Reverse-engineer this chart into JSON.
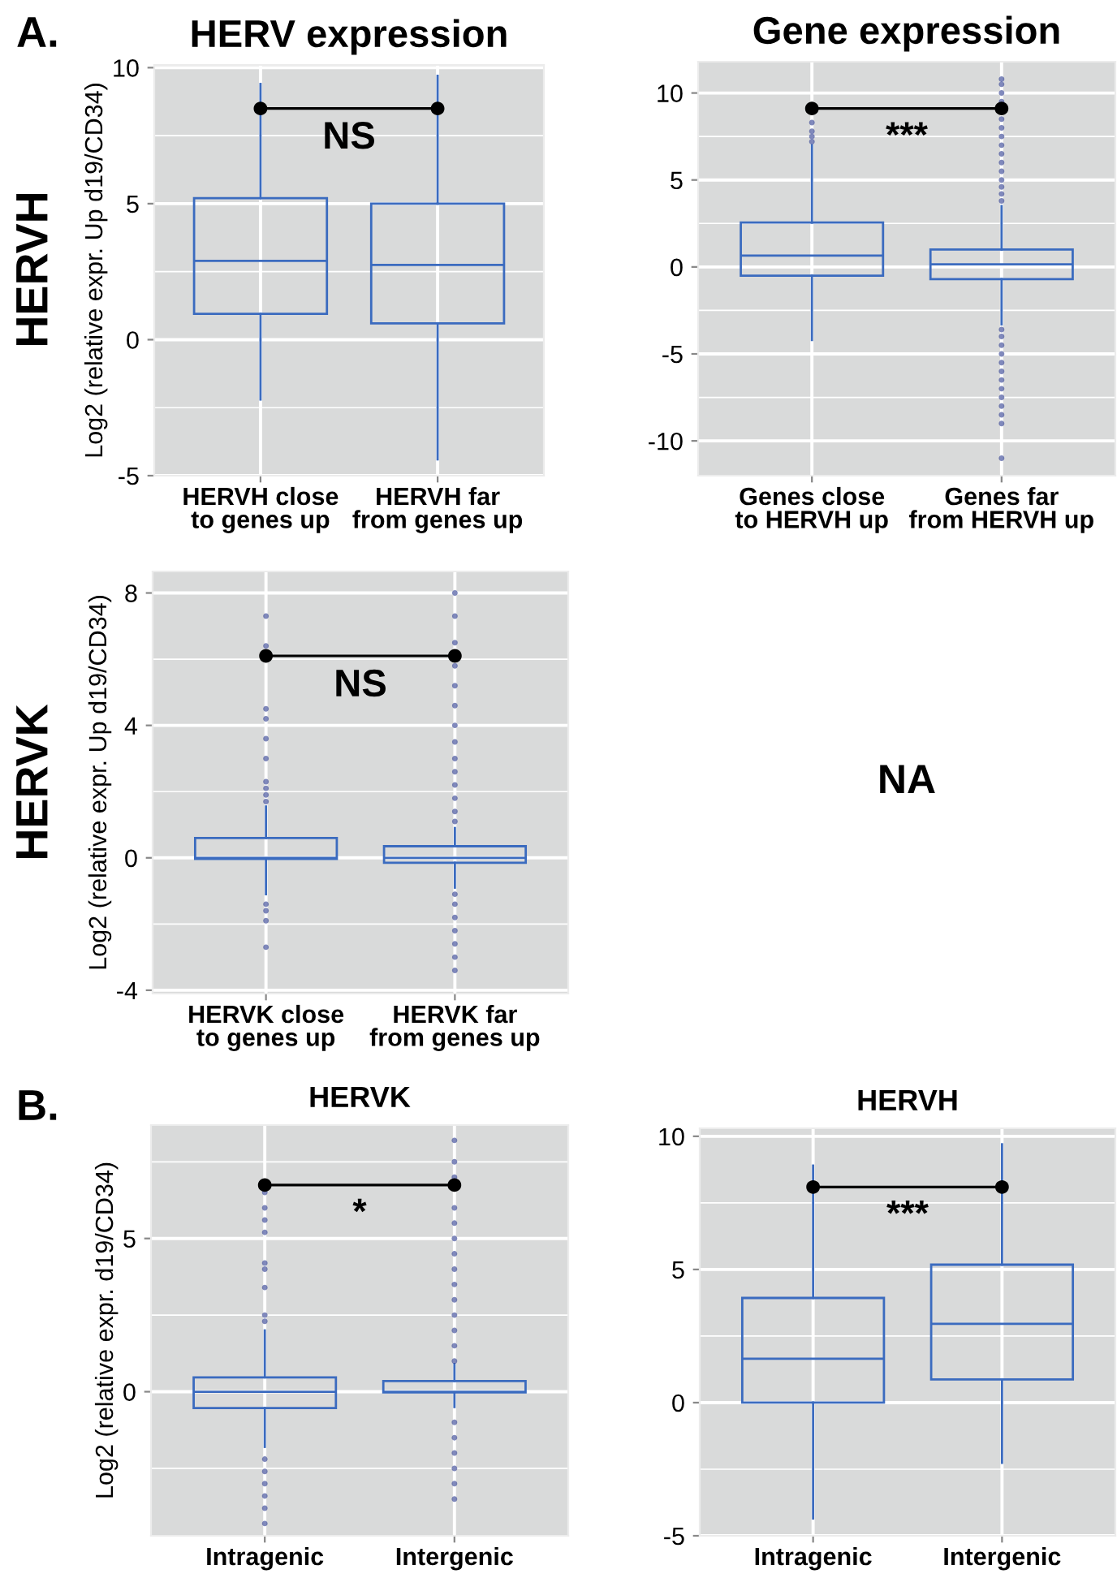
{
  "chart_data": [
    {
      "type": "box",
      "title": "HERV expression",
      "ylabel": "Log2 (relative expr. Up d19/CD34)",
      "categories": [
        "HERVH close\nto genes up",
        "HERVH far\nfrom genes up"
      ],
      "color": "#3b6bbf",
      "ylim": [
        -5,
        10.1
      ],
      "yticks": [
        -5,
        0,
        5,
        10
      ],
      "grid": true,
      "annotations": [
        "A.",
        "HERVH",
        "NS"
      ],
      "boxes": [
        {
          "low": -2.2,
          "q1": 0.95,
          "median": 2.9,
          "q3": 5.2,
          "high": 9.4
        },
        {
          "low": -4.4,
          "q1": 0.6,
          "median": 2.75,
          "q3": 5.0,
          "high": 9.7
        }
      ]
    },
    {
      "type": "box",
      "title": "Gene expression",
      "categories": [
        "Genes close\nto HERVH up",
        "Genes far\nfrom HERVH up"
      ],
      "color": "#3b6bbf",
      "ylim": [
        -12,
        11.8
      ],
      "yticks": [
        -10,
        -5,
        0,
        5,
        10
      ],
      "grid": true,
      "annotations": [
        "***"
      ],
      "boxes": [
        {
          "low": -4.2,
          "q1": -0.5,
          "median": 0.65,
          "q3": 2.55,
          "high": 7.0,
          "outliers": [
            7.2,
            7.5,
            7.8,
            8.3
          ]
        },
        {
          "low": -3.3,
          "q1": -0.7,
          "median": 0.15,
          "q3": 1.0,
          "high": 3.5,
          "outliers": [
            3.8,
            4.2,
            4.6,
            5.0,
            5.5,
            6.0,
            6.5,
            7.0,
            7.5,
            8.0,
            8.5,
            9.5,
            10.0,
            10.5,
            10.8,
            -3.6,
            -4.0,
            -4.5,
            -5.0,
            -5.5,
            -6.0,
            -6.5,
            -7.0,
            -7.5,
            -8.0,
            -8.5,
            -9.0,
            -11.0
          ]
        }
      ]
    },
    {
      "type": "box",
      "ylabel": "Log2 (relative expr. Up d19/CD34)",
      "categories": [
        "HERVK close\nto genes up",
        "HERVK far\nfrom genes up"
      ],
      "color": "#3b6bbf",
      "ylim": [
        -4.1,
        8.65
      ],
      "yticks": [
        -4,
        0,
        4,
        8
      ],
      "grid": true,
      "annotations": [
        "HERVK",
        "NS"
      ],
      "boxes": [
        {
          "low": -1.1,
          "q1": -0.03,
          "median": 0.0,
          "q3": 0.6,
          "high": 1.55,
          "outliers": [
            1.7,
            1.9,
            2.1,
            2.3,
            3.0,
            3.6,
            4.2,
            4.5,
            6.4,
            7.3,
            -1.4,
            -1.6,
            -1.9,
            -2.7
          ]
        },
        {
          "low": -0.9,
          "q1": -0.15,
          "median": 0.0,
          "q3": 0.35,
          "high": 0.9,
          "outliers": [
            1.1,
            1.4,
            1.8,
            2.2,
            2.6,
            3.0,
            3.5,
            4.0,
            4.6,
            5.2,
            5.8,
            6.5,
            7.3,
            8.0,
            -1.1,
            -1.4,
            -1.8,
            -2.2,
            -2.6,
            -3.0,
            -3.4
          ]
        }
      ]
    },
    {
      "type": "other",
      "annotations": [
        "NA"
      ]
    },
    {
      "type": "box",
      "title": "HERVK",
      "ylabel": "Log2 (relative expr. d19/CD34)",
      "categories": [
        "Intragenic",
        "Intergenic"
      ],
      "color": "#3b6bbf",
      "ylim": [
        -4.7,
        8.7
      ],
      "yticks": [
        0,
        5
      ],
      "grid": true,
      "annotations": [
        "B.",
        "*"
      ],
      "boxes": [
        {
          "low": -1.8,
          "q1": -0.53,
          "median": 0.0,
          "q3": 0.47,
          "high": 2.0,
          "outliers": [
            2.3,
            2.5,
            3.4,
            4.0,
            4.2,
            5.2,
            5.6,
            6.0,
            6.5,
            -2.2,
            -2.6,
            -3.0,
            -3.4,
            -3.8,
            -4.3
          ]
        },
        {
          "low": -0.5,
          "q1": -0.02,
          "median": 0.0,
          "q3": 0.35,
          "high": 0.9,
          "outliers": [
            1.0,
            1.5,
            2.0,
            2.5,
            3.0,
            3.5,
            4.0,
            4.5,
            5.0,
            5.5,
            6.0,
            7.0,
            7.5,
            8.2,
            -1.0,
            -1.5,
            -2.0,
            -2.5,
            -3.0,
            -3.5
          ]
        }
      ]
    },
    {
      "type": "box",
      "title": "HERVH",
      "categories": [
        "Intragenic",
        "Intergenic"
      ],
      "color": "#3b6bbf",
      "ylim": [
        -5,
        10.3
      ],
      "yticks": [
        -5,
        0,
        5,
        10
      ],
      "grid": true,
      "annotations": [
        "***"
      ],
      "boxes": [
        {
          "low": -4.35,
          "q1": 0.0,
          "median": 1.65,
          "q3": 3.93,
          "high": 8.9
        },
        {
          "low": -2.26,
          "q1": 0.87,
          "median": 2.96,
          "q3": 5.18,
          "high": 9.7
        }
      ]
    }
  ]
}
